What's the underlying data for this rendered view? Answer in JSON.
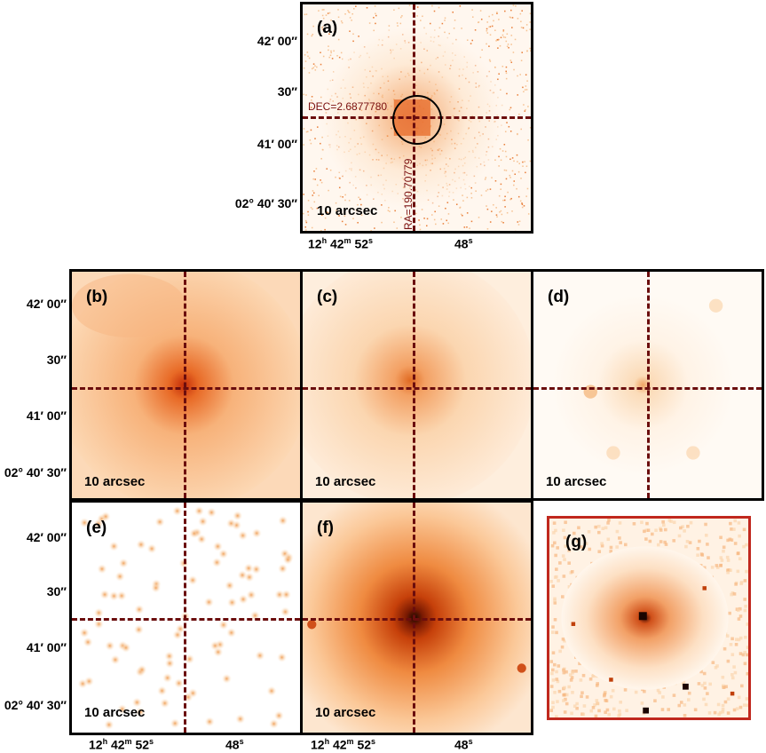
{
  "panels": {
    "a": {
      "label": "(a)",
      "scale": "10 arcsec",
      "dec_text": "DEC=2.6877780",
      "ra_text": "RA=190.70779"
    },
    "b": {
      "label": "(b)",
      "scale": "10 arcsec"
    },
    "c": {
      "label": "(c)",
      "scale": "10 arcsec"
    },
    "d": {
      "label": "(d)",
      "scale": "10 arcsec"
    },
    "e": {
      "label": "(e)",
      "scale": "10 arcsec"
    },
    "f": {
      "label": "(f)",
      "scale": "10 arcsec"
    },
    "g": {
      "label": "(g)"
    }
  },
  "y_ticks": [
    "42′ 00″",
    "30″",
    "41′ 00″",
    "02° 40′ 30″"
  ],
  "x_ticks": {
    "left": "12",
    "h": "h",
    "mid1": "42",
    "m": "m",
    "mid2": "52",
    "s": "s",
    "right": "48",
    "s2": "s"
  },
  "colors": {
    "frame": "#000000",
    "crosshair": "#6b0d0d",
    "panel_g_border": "#c0281e",
    "heat_low": "#fff6ea",
    "heat_high": "#b33000"
  }
}
